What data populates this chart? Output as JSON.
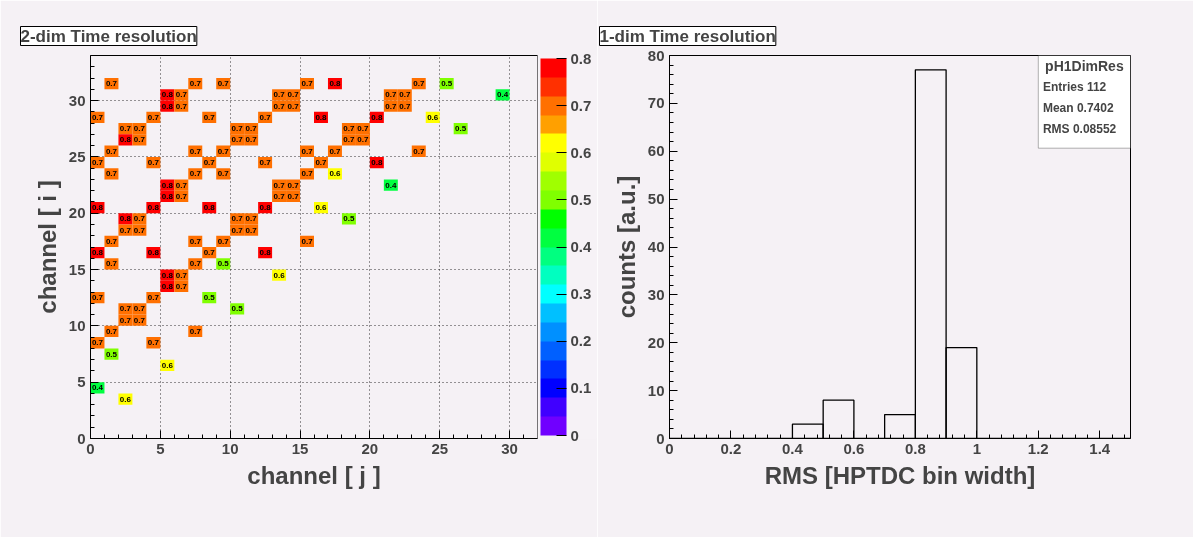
{
  "chart_data": [
    {
      "type": "scatter",
      "title": "2-dim Time resolution",
      "xlabel": "channel [ j ]",
      "ylabel": "channel [ i ]",
      "xlim": [
        0,
        32
      ],
      "xticks": [
        0,
        5,
        10,
        15,
        20,
        25,
        30
      ],
      "ylim": [
        0,
        34
      ],
      "yticks": [
        0,
        5,
        10,
        15,
        20,
        25,
        30
      ],
      "clim": [
        0,
        0.8
      ],
      "cticks": [
        0,
        0.1,
        0.2,
        0.3,
        0.4,
        0.5,
        0.6,
        0.7,
        0.8
      ],
      "grid": true,
      "marker": "square",
      "x": [
        1.5,
        7.5,
        9.5,
        15.5,
        17.5,
        23.5,
        25.5,
        5.5,
        6.5,
        13.5,
        14.5,
        21.5,
        22.5,
        29.5,
        5.5,
        6.5,
        13.5,
        14.5,
        21.5,
        22.5,
        0.5,
        4.5,
        8.5,
        12.5,
        16.5,
        20.5,
        24.5,
        2.5,
        3.5,
        10.5,
        11.5,
        18.5,
        19.5,
        26.5,
        2.5,
        3.5,
        10.5,
        11.5,
        18.5,
        19.5,
        1.5,
        7.5,
        9.5,
        15.5,
        17.5,
        23.5,
        0.5,
        4.5,
        8.5,
        12.5,
        16.5,
        20.5,
        1.5,
        7.5,
        9.5,
        15.5,
        17.5,
        5.5,
        6.5,
        13.5,
        14.5,
        21.5,
        5.5,
        6.5,
        13.5,
        14.5,
        0.5,
        4.5,
        8.5,
        12.5,
        16.5,
        2.5,
        3.5,
        10.5,
        11.5,
        18.5,
        2.5,
        3.5,
        10.5,
        11.5,
        1.5,
        7.5,
        9.5,
        15.5,
        0.5,
        4.5,
        8.5,
        12.5,
        1.5,
        7.5,
        9.5,
        5.5,
        6.5,
        13.5,
        5.5,
        6.5,
        0.5,
        4.5,
        8.5,
        2.5,
        3.5,
        10.5,
        2.5,
        3.5,
        1.5,
        7.5,
        0.5,
        4.5,
        1.5,
        5.5,
        0.5,
        2.5
      ],
      "values": [
        31.5,
        31.5,
        31.5,
        31.5,
        31.5,
        31.5,
        31.5,
        30.5,
        30.5,
        30.5,
        30.5,
        30.5,
        30.5,
        30.5,
        29.5,
        29.5,
        29.5,
        29.5,
        29.5,
        29.5,
        28.5,
        28.5,
        28.5,
        28.5,
        28.5,
        28.5,
        28.5,
        27.5,
        27.5,
        27.5,
        27.5,
        27.5,
        27.5,
        27.5,
        26.5,
        26.5,
        26.5,
        26.5,
        26.5,
        26.5,
        25.5,
        25.5,
        25.5,
        25.5,
        25.5,
        25.5,
        24.5,
        24.5,
        24.5,
        24.5,
        24.5,
        24.5,
        23.5,
        23.5,
        23.5,
        23.5,
        23.5,
        22.5,
        22.5,
        22.5,
        22.5,
        22.5,
        21.5,
        21.5,
        21.5,
        21.5,
        20.5,
        20.5,
        20.5,
        20.5,
        20.5,
        19.5,
        19.5,
        19.5,
        19.5,
        19.5,
        18.5,
        18.5,
        18.5,
        18.5,
        17.5,
        17.5,
        17.5,
        17.5,
        16.5,
        16.5,
        16.5,
        16.5,
        15.5,
        15.5,
        15.5,
        14.5,
        14.5,
        14.5,
        13.5,
        13.5,
        12.5,
        12.5,
        12.5,
        11.5,
        11.5,
        11.5,
        10.5,
        10.5,
        9.5,
        9.5,
        8.5,
        8.5,
        7.5,
        6.5,
        4.5,
        3.5
      ],
      "cvalues": [
        0.7,
        0.7,
        0.7,
        0.7,
        0.8,
        0.7,
        0.5,
        0.8,
        0.7,
        0.7,
        0.7,
        0.7,
        0.7,
        0.4,
        0.8,
        0.7,
        0.7,
        0.7,
        0.7,
        0.7,
        0.7,
        0.7,
        0.7,
        0.7,
        0.8,
        0.8,
        0.6,
        0.7,
        0.7,
        0.7,
        0.7,
        0.7,
        0.7,
        0.5,
        0.8,
        0.7,
        0.7,
        0.7,
        0.7,
        0.7,
        0.7,
        0.7,
        0.7,
        0.7,
        0.7,
        0.7,
        0.7,
        0.7,
        0.7,
        0.7,
        0.7,
        0.8,
        0.7,
        0.7,
        0.7,
        0.7,
        0.6,
        0.8,
        0.7,
        0.7,
        0.7,
        0.4,
        0.8,
        0.7,
        0.7,
        0.7,
        0.8,
        0.8,
        0.8,
        0.8,
        0.6,
        0.8,
        0.7,
        0.7,
        0.7,
        0.5,
        0.7,
        0.7,
        0.7,
        0.7,
        0.7,
        0.7,
        0.7,
        0.7,
        0.8,
        0.8,
        0.7,
        0.8,
        0.7,
        0.7,
        0.5,
        0.8,
        0.7,
        0.6,
        0.8,
        0.7,
        0.7,
        0.7,
        0.5,
        0.7,
        0.7,
        0.5,
        0.7,
        0.7,
        0.7,
        0.7,
        0.7,
        0.7,
        0.5,
        0.6,
        0.4,
        0.6
      ],
      "annotations": [
        {
          "text": "0.7",
          "x": 1.5,
          "y": 31.5
        },
        {
          "text": "0.7",
          "x": 7.5,
          "y": 31.5
        },
        {
          "text": "0.7",
          "x": 9.5,
          "y": 31.5
        },
        {
          "text": "0.7",
          "x": 15.5,
          "y": 31.5
        },
        {
          "text": "0.8",
          "x": 17.5,
          "y": 31.5
        },
        {
          "text": "0.7",
          "x": 23.5,
          "y": 31.5
        },
        {
          "text": "0.5",
          "x": 25.5,
          "y": 31.5
        },
        {
          "text": "0.8",
          "x": 5.5,
          "y": 30.5
        },
        {
          "text": "0.7",
          "x": 6.5,
          "y": 30.5
        },
        {
          "text": "0.7",
          "x": 13.5,
          "y": 30.5
        },
        {
          "text": "0.7",
          "x": 14.5,
          "y": 30.5
        },
        {
          "text": "0.7",
          "x": 21.5,
          "y": 30.5
        },
        {
          "text": "0.7",
          "x": 22.5,
          "y": 30.5
        },
        {
          "text": "0.4",
          "x": 29.5,
          "y": 30.5
        },
        {
          "text": "0.8",
          "x": 5.5,
          "y": 29.5
        },
        {
          "text": "0.7",
          "x": 6.5,
          "y": 29.5
        },
        {
          "text": "0.7",
          "x": 13.5,
          "y": 29.5
        },
        {
          "text": "0.7",
          "x": 14.5,
          "y": 29.5
        },
        {
          "text": "0.7",
          "x": 21.5,
          "y": 29.5
        },
        {
          "text": "0.7",
          "x": 22.5,
          "y": 29.5
        },
        {
          "text": "0.7",
          "x": 0.5,
          "y": 28.5
        },
        {
          "text": "0.7",
          "x": 4.5,
          "y": 28.5
        },
        {
          "text": "0.7",
          "x": 8.5,
          "y": 28.5
        },
        {
          "text": "0.7",
          "x": 12.5,
          "y": 28.5
        },
        {
          "text": "0.8",
          "x": 16.5,
          "y": 28.5
        },
        {
          "text": "0.8",
          "x": 20.5,
          "y": 28.5
        },
        {
          "text": "0.6",
          "x": 24.5,
          "y": 28.5
        },
        {
          "text": "0.7",
          "x": 2.5,
          "y": 27.5
        },
        {
          "text": "0.7",
          "x": 3.5,
          "y": 27.5
        },
        {
          "text": "0.7",
          "x": 10.5,
          "y": 27.5
        },
        {
          "text": "0.7",
          "x": 11.5,
          "y": 27.5
        },
        {
          "text": "0.7",
          "x": 18.5,
          "y": 27.5
        },
        {
          "text": "0.7",
          "x": 19.5,
          "y": 27.5
        },
        {
          "text": "0.5",
          "x": 26.5,
          "y": 27.5
        },
        {
          "text": "0.8",
          "x": 2.5,
          "y": 26.5
        },
        {
          "text": "0.7",
          "x": 3.5,
          "y": 26.5
        },
        {
          "text": "0.7",
          "x": 10.5,
          "y": 26.5
        },
        {
          "text": "0.7",
          "x": 11.5,
          "y": 26.5
        },
        {
          "text": "0.7",
          "x": 18.5,
          "y": 26.5
        },
        {
          "text": "0.7",
          "x": 19.5,
          "y": 26.5
        },
        {
          "text": "0.7",
          "x": 1.5,
          "y": 25.5
        },
        {
          "text": "0.7",
          "x": 7.5,
          "y": 25.5
        },
        {
          "text": "0.7",
          "x": 9.5,
          "y": 25.5
        },
        {
          "text": "0.7",
          "x": 15.5,
          "y": 25.5
        },
        {
          "text": "0.7",
          "x": 17.5,
          "y": 25.5
        },
        {
          "text": "0.7",
          "x": 23.5,
          "y": 25.5
        },
        {
          "text": "0.7",
          "x": 0.5,
          "y": 24.5
        },
        {
          "text": "0.7",
          "x": 4.5,
          "y": 24.5
        },
        {
          "text": "0.7",
          "x": 8.5,
          "y": 24.5
        },
        {
          "text": "0.7",
          "x": 12.5,
          "y": 24.5
        },
        {
          "text": "0.7",
          "x": 16.5,
          "y": 24.5
        },
        {
          "text": "0.8",
          "x": 20.5,
          "y": 24.5
        },
        {
          "text": "0.7",
          "x": 1.5,
          "y": 23.5
        },
        {
          "text": "0.7",
          "x": 7.5,
          "y": 23.5
        },
        {
          "text": "0.7",
          "x": 9.5,
          "y": 23.5
        },
        {
          "text": "0.7",
          "x": 15.5,
          "y": 23.5
        },
        {
          "text": "0.6",
          "x": 17.5,
          "y": 23.5
        },
        {
          "text": "0.8",
          "x": 5.5,
          "y": 22.5
        },
        {
          "text": "0.7",
          "x": 6.5,
          "y": 22.5
        },
        {
          "text": "0.7",
          "x": 13.5,
          "y": 22.5
        },
        {
          "text": "0.7",
          "x": 14.5,
          "y": 22.5
        },
        {
          "text": "0.4",
          "x": 21.5,
          "y": 22.5
        },
        {
          "text": "0.8",
          "x": 5.5,
          "y": 21.5
        },
        {
          "text": "0.7",
          "x": 6.5,
          "y": 21.5
        },
        {
          "text": "0.7",
          "x": 13.5,
          "y": 21.5
        },
        {
          "text": "0.7",
          "x": 14.5,
          "y": 21.5
        },
        {
          "text": "0.8",
          "x": 0.5,
          "y": 20.5
        },
        {
          "text": "0.8",
          "x": 4.5,
          "y": 20.5
        },
        {
          "text": "0.8",
          "x": 8.5,
          "y": 20.5
        },
        {
          "text": "0.8",
          "x": 12.5,
          "y": 20.5
        },
        {
          "text": "0.6",
          "x": 16.5,
          "y": 20.5
        },
        {
          "text": "0.8",
          "x": 2.5,
          "y": 19.5
        },
        {
          "text": "0.7",
          "x": 3.5,
          "y": 19.5
        },
        {
          "text": "0.7",
          "x": 10.5,
          "y": 19.5
        },
        {
          "text": "0.7",
          "x": 11.5,
          "y": 19.5
        },
        {
          "text": "0.5",
          "x": 18.5,
          "y": 19.5
        },
        {
          "text": "0.7",
          "x": 2.5,
          "y": 18.5
        },
        {
          "text": "0.7",
          "x": 3.5,
          "y": 18.5
        },
        {
          "text": "0.7",
          "x": 10.5,
          "y": 18.5
        },
        {
          "text": "0.7",
          "x": 11.5,
          "y": 18.5
        },
        {
          "text": "0.7",
          "x": 1.5,
          "y": 17.5
        },
        {
          "text": "0.7",
          "x": 7.5,
          "y": 17.5
        },
        {
          "text": "0.7",
          "x": 9.5,
          "y": 17.5
        },
        {
          "text": "0.7",
          "x": 15.5,
          "y": 17.5
        },
        {
          "text": "0.8",
          "x": 0.5,
          "y": 16.5
        },
        {
          "text": "0.8",
          "x": 4.5,
          "y": 16.5
        },
        {
          "text": "0.7",
          "x": 8.5,
          "y": 16.5
        },
        {
          "text": "0.8",
          "x": 12.5,
          "y": 16.5
        },
        {
          "text": "0.7",
          "x": 1.5,
          "y": 15.5
        },
        {
          "text": "0.7",
          "x": 7.5,
          "y": 15.5
        },
        {
          "text": "0.5",
          "x": 9.5,
          "y": 15.5
        },
        {
          "text": "0.8",
          "x": 5.5,
          "y": 14.5
        },
        {
          "text": "0.7",
          "x": 6.5,
          "y": 14.5
        },
        {
          "text": "0.6",
          "x": 13.5,
          "y": 14.5
        },
        {
          "text": "0.8",
          "x": 5.5,
          "y": 13.5
        },
        {
          "text": "0.7",
          "x": 6.5,
          "y": 13.5
        },
        {
          "text": "0.7",
          "x": 0.5,
          "y": 12.5
        },
        {
          "text": "0.7",
          "x": 4.5,
          "y": 12.5
        },
        {
          "text": "0.5",
          "x": 8.5,
          "y": 12.5
        },
        {
          "text": "0.7",
          "x": 2.5,
          "y": 11.5
        },
        {
          "text": "0.7",
          "x": 3.5,
          "y": 11.5
        },
        {
          "text": "0.5",
          "x": 10.5,
          "y": 11.5
        },
        {
          "text": "0.7",
          "x": 2.5,
          "y": 10.5
        },
        {
          "text": "0.7",
          "x": 3.5,
          "y": 10.5
        },
        {
          "text": "0.7",
          "x": 1.5,
          "y": 9.5
        },
        {
          "text": "0.7",
          "x": 7.5,
          "y": 9.5
        },
        {
          "text": "0.7",
          "x": 0.5,
          "y": 8.5
        },
        {
          "text": "0.7",
          "x": 4.5,
          "y": 8.5
        },
        {
          "text": "0.5",
          "x": 1.5,
          "y": 7.5
        },
        {
          "text": "0.6",
          "x": 5.5,
          "y": 6.5
        },
        {
          "text": "0.4",
          "x": 0.5,
          "y": 4.5
        },
        {
          "text": "0.6",
          "x": 2.5,
          "y": 3.5
        }
      ]
    },
    {
      "type": "histogram",
      "title": "1-dim Time resolution",
      "xlabel": "RMS [HPTDC bin width]",
      "ylabel": "counts [a.u.]",
      "bins": [
        0,
        0.1,
        0.2,
        0.3,
        0.4,
        0.5,
        0.6,
        0.7,
        0.8,
        0.9,
        1.0,
        1.1,
        1.2,
        1.3,
        1.4,
        1.5
      ],
      "values": [
        0,
        0,
        0,
        0,
        3,
        8,
        0,
        5,
        77,
        19,
        0,
        0,
        0,
        0,
        0
      ],
      "color": "#000000",
      "xlim": [
        0,
        1.5
      ],
      "xticks": [
        0,
        0.2,
        0.4,
        0.6,
        0.8,
        1,
        1.2,
        1.4
      ],
      "ylim": [
        0,
        80
      ],
      "yticks": [
        0,
        10,
        20,
        30,
        40,
        50,
        60,
        70,
        80
      ],
      "grid": false,
      "annotations": [
        "pH1DimRes",
        "Entries 112",
        "Mean 0.7402",
        "RMS 0.08552"
      ]
    }
  ]
}
